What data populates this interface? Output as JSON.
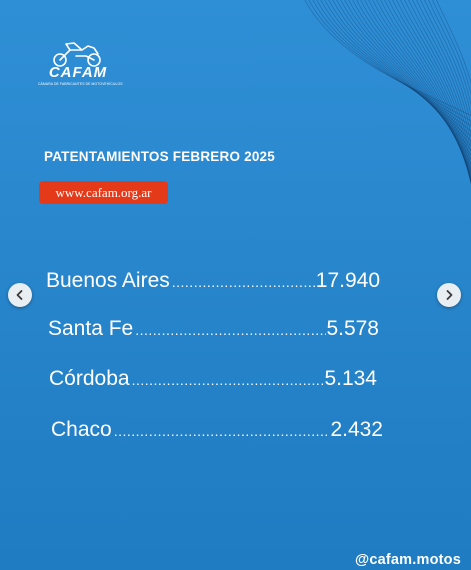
{
  "brand": {
    "name": "CAFAM",
    "subtitle": "CÁMARA DE FABRICANTES DE MOTOVEHÍCULOS",
    "logo_icon": "motorcycle-icon"
  },
  "heading": "PATENTAMIENTOS FEBRERO 2025",
  "website": "www.cafam.org.ar",
  "rows": [
    {
      "province": "Buenos Aires",
      "value": "17.940"
    },
    {
      "province": "Santa Fe",
      "value": "5.578"
    },
    {
      "province": "Córdoba",
      "value": "5.134"
    },
    {
      "province": "Chaco",
      "value": "2.432"
    }
  ],
  "navigation": {
    "prev_icon": "chevron-left-icon",
    "next_icon": "chevron-right-icon"
  },
  "social_handle": "@cafam.motos",
  "colors": {
    "background": "#2886cc",
    "badge": "#e53a1a",
    "text": "#ffffff",
    "nav_button": "#e9eef3"
  }
}
